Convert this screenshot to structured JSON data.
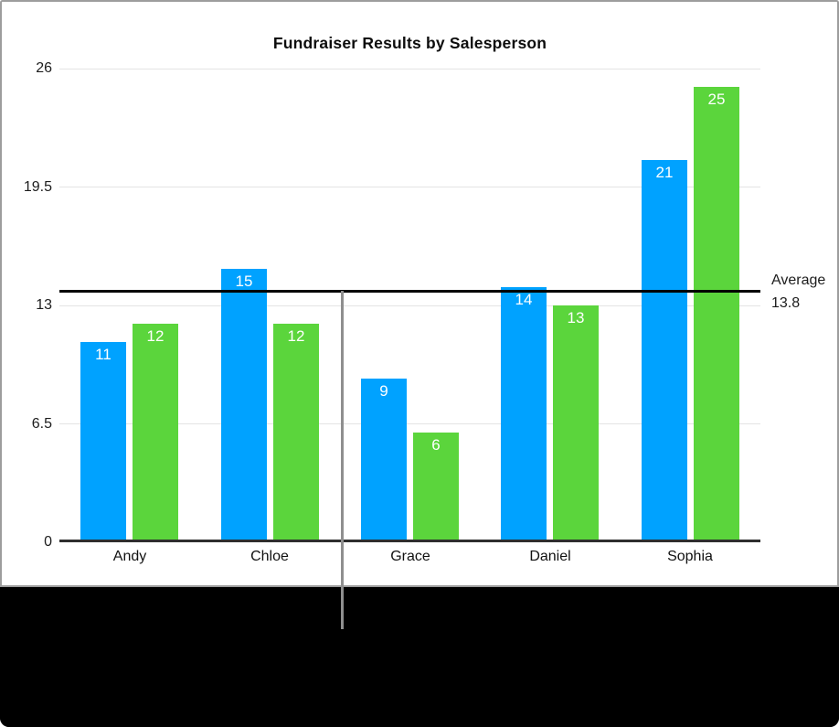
{
  "chart_data": {
    "type": "bar",
    "title": "Fundraiser Results by Salesperson",
    "categories": [
      "Andy",
      "Chloe",
      "Grace",
      "Daniel",
      "Sophia"
    ],
    "series": [
      {
        "name": "series-blue",
        "color": "#00A2FF",
        "values": [
          11,
          15,
          9,
          14,
          21
        ]
      },
      {
        "name": "series-green",
        "color": "#5BD53C",
        "values": [
          12,
          12,
          6,
          13,
          25
        ]
      }
    ],
    "ylim": [
      0,
      26
    ],
    "y_ticks": [
      0,
      6.5,
      13,
      19.5,
      26
    ],
    "grid": true,
    "legend_position": "none",
    "bar_value_labels_shown": true,
    "reference_line": {
      "label": "Average",
      "value": 13.8
    }
  },
  "colors": {
    "axis_line": "#2e2e2e",
    "gridline": "#e4e4e4",
    "reference_line": "#000000",
    "reference_drag_guide": "#8f8f8f",
    "panel_border": "#9d9d9d",
    "background_strip": "#000000",
    "bar_value_text": "#ffffff"
  }
}
